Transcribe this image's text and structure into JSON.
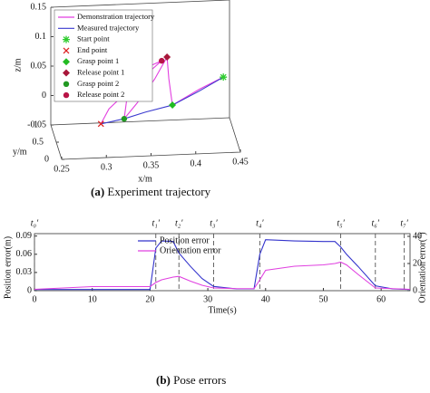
{
  "chart_data": [
    {
      "type": "line3d",
      "xlabel": "x/m",
      "ylabel": "y/m",
      "zlabel": "z/m",
      "xlim": [
        0.25,
        0.45
      ],
      "ylim": [
        0,
        1
      ],
      "zlim": [
        -0.05,
        0.15
      ],
      "xticks": [
        0.25,
        0.3,
        0.35,
        0.4,
        0.45
      ],
      "yticks": [
        0,
        0.5,
        1
      ],
      "zticks": [
        -0.05,
        0,
        0.05,
        0.1,
        0.15
      ],
      "series": [
        {
          "name": "Demonstration trajectory",
          "color": "#e23fe0",
          "x": [
            0.437,
            0.41,
            0.38,
            0.376,
            0.374,
            0.36,
            0.34,
            0.326,
            0.33,
            0.35,
            0.368,
            0.339,
            0.309,
            0.3
          ],
          "y": [
            0.5,
            0.5,
            0.5,
            0.5,
            0.5,
            0.5,
            0.5,
            0.5,
            0.5,
            0.5,
            0.5,
            0.5,
            0.5,
            0.5
          ],
          "z": [
            0.049,
            0.03,
            0.005,
            0.05,
            0.087,
            0.05,
            0.01,
            -0.015,
            0.03,
            0.07,
            0.081,
            0.044,
            0.003,
            -0.022
          ]
        },
        {
          "name": "Measured trajectory",
          "color": "#3a3acf",
          "x": [
            0.437,
            0.41,
            0.38,
            0.35,
            0.326,
            0.3
          ],
          "y": [
            0.5,
            0.5,
            0.5,
            0.5,
            0.5,
            0.5
          ],
          "z": [
            0.049,
            0.027,
            0.005,
            -0.005,
            -0.015,
            -0.022
          ]
        }
      ],
      "points": [
        {
          "name": "Start point",
          "marker": "star",
          "color": "#2ecc2e",
          "x": 0.437,
          "y": 0.5,
          "z": 0.049
        },
        {
          "name": "End point",
          "marker": "cross",
          "color": "#dd2222",
          "x": 0.3,
          "y": 0.5,
          "z": -0.022
        },
        {
          "name": "Grasp point 1",
          "marker": "diamond",
          "color": "#22bb22",
          "x": 0.38,
          "y": 0.5,
          "z": 0.005
        },
        {
          "name": "Release point 1",
          "marker": "diamond",
          "color": "#a8173a",
          "x": 0.374,
          "y": 0.5,
          "z": 0.087
        },
        {
          "name": "Grasp point 2",
          "marker": "circle",
          "color": "#229922",
          "x": 0.326,
          "y": 0.5,
          "z": -0.015
        },
        {
          "name": "Release point 2",
          "marker": "circle",
          "color": "#b81446",
          "x": 0.368,
          "y": 0.5,
          "z": 0.081
        }
      ],
      "caption_label": "(a)",
      "caption": "Experiment trajectory"
    },
    {
      "type": "line",
      "xlabel": "Time(s)",
      "ylabel": "Position error(m)",
      "y2label": "Orientation error(°)",
      "xlim": [
        0,
        65
      ],
      "xticks": [
        0,
        10,
        20,
        30,
        40,
        50,
        60
      ],
      "ylim": [
        0,
        0.094
      ],
      "yticks": [
        0,
        0.03,
        0.06,
        0.09
      ],
      "y2lim": [
        0,
        42
      ],
      "y2ticks": [
        0,
        20,
        40
      ],
      "x": [
        0,
        5,
        10,
        15,
        20,
        21,
        22,
        24,
        25,
        27,
        29,
        31,
        35,
        38,
        39,
        40,
        45,
        50,
        52,
        53,
        54,
        56,
        59,
        62,
        65
      ],
      "series": [
        {
          "name": "Position error",
          "color": "#3333cc",
          "values": [
            0.002,
            0.002,
            0.002,
            0.002,
            0.002,
            0.07,
            0.082,
            0.081,
            0.062,
            0.04,
            0.02,
            0.007,
            0.003,
            0.003,
            0.06,
            0.084,
            0.082,
            0.081,
            0.081,
            0.072,
            0.06,
            0.04,
            0.008,
            0.003,
            0.002
          ]
        },
        {
          "name": "Orientation error",
          "color": "#e040e0",
          "axis": "y2",
          "values": [
            1,
            2,
            3,
            3,
            3,
            6,
            8,
            10,
            10.5,
            7,
            4,
            2,
            1.5,
            1.5,
            8,
            15,
            18,
            19,
            20,
            21,
            19,
            12,
            2,
            1.5,
            1
          ]
        }
      ],
      "events": [
        {
          "label": "t₀′",
          "value": 0
        },
        {
          "label": "t₁′",
          "value": 21
        },
        {
          "label": "t₂′",
          "value": 25
        },
        {
          "label": "t₃′",
          "value": 31
        },
        {
          "label": "t₄′",
          "value": 39
        },
        {
          "label": "t₅′",
          "value": 53
        },
        {
          "label": "t₆′",
          "value": 59
        },
        {
          "label": "t₇′",
          "value": 64
        }
      ],
      "legend": "upper left",
      "caption_label": "(b)",
      "caption": "Pose errors"
    }
  ]
}
